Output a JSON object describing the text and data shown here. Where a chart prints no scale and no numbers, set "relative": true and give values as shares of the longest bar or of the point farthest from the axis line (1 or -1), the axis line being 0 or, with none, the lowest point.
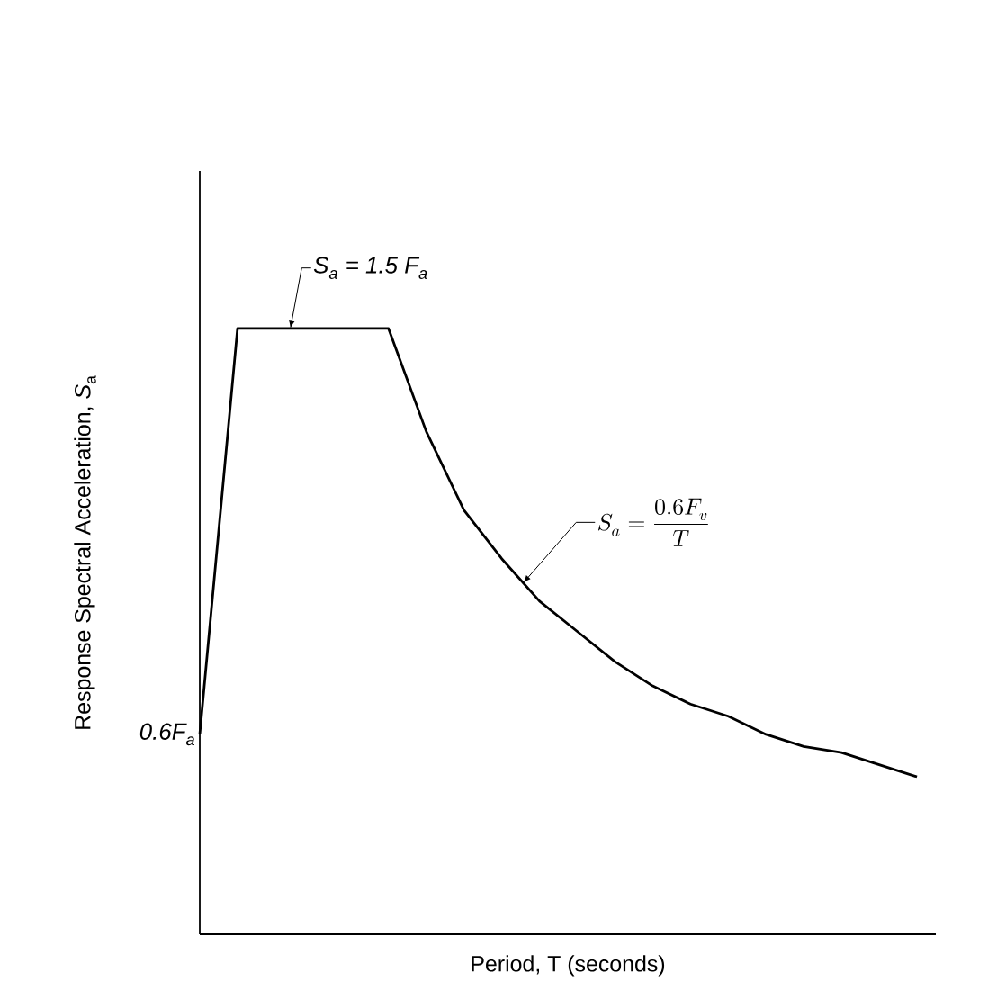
{
  "chart_data": {
    "type": "line",
    "relative": true,
    "color": "#000000",
    "marker": "none",
    "line_style": "solid",
    "xlabel": "Period, T (seconds)",
    "ylabel": "Response Spectral Acceleration, *S*$_{a}$",
    "categories": [
      null,
      null,
      null,
      null,
      null,
      null,
      null,
      null,
      null,
      null,
      null,
      null,
      null,
      null,
      null,
      null,
      null,
      null,
      null,
      null
    ],
    "values": [
      0.33,
      1,
      1,
      1,
      1,
      1,
      0.83,
      0.7,
      0.62,
      0.55,
      0.5,
      0.45,
      0.41,
      0.38,
      0.36,
      0.33,
      0.31,
      0.3,
      0.28,
      0.26
    ],
    "annotations": [
      {
        "text": "S$_{a}$ = 1.5 F$_{a}$",
        "y": 1
      },
      "S_a = \\frac{0.6F_v}{T}",
      "0.6F$_{a}$"
    ]
  }
}
